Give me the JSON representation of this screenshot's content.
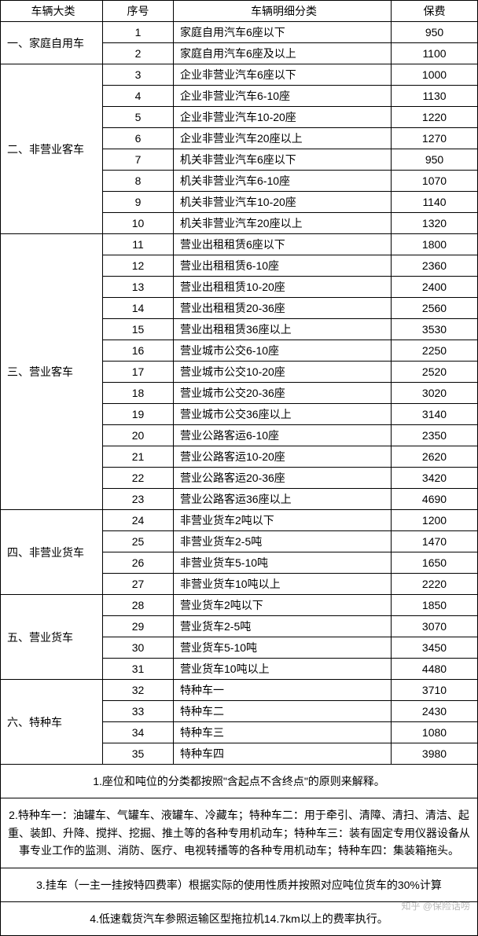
{
  "headers": {
    "category": "车辆大类",
    "seq": "序号",
    "detail": "车辆明细分类",
    "fee": "保费"
  },
  "groups": [
    {
      "name": "一、家庭自用车",
      "rows": [
        {
          "seq": "1",
          "detail": "家庭自用汽车6座以下",
          "fee": "950"
        },
        {
          "seq": "2",
          "detail": "家庭自用汽车6座及以上",
          "fee": "1100"
        }
      ]
    },
    {
      "name": "二、非营业客车",
      "rows": [
        {
          "seq": "3",
          "detail": "企业非营业汽车6座以下",
          "fee": "1000"
        },
        {
          "seq": "4",
          "detail": "企业非营业汽车6-10座",
          "fee": "1130"
        },
        {
          "seq": "5",
          "detail": "企业非营业汽车10-20座",
          "fee": "1220"
        },
        {
          "seq": "6",
          "detail": "企业非营业汽车20座以上",
          "fee": "1270"
        },
        {
          "seq": "7",
          "detail": "机关非营业汽车6座以下",
          "fee": "950"
        },
        {
          "seq": "8",
          "detail": "机关非营业汽车6-10座",
          "fee": "1070"
        },
        {
          "seq": "9",
          "detail": "机关非营业汽车10-20座",
          "fee": "1140"
        },
        {
          "seq": "10",
          "detail": "机关非营业汽车20座以上",
          "fee": "1320"
        }
      ]
    },
    {
      "name": "三、营业客车",
      "rows": [
        {
          "seq": "11",
          "detail": "营业出租租赁6座以下",
          "fee": "1800"
        },
        {
          "seq": "12",
          "detail": "营业出租租赁6-10座",
          "fee": "2360"
        },
        {
          "seq": "13",
          "detail": "营业出租租赁10-20座",
          "fee": "2400"
        },
        {
          "seq": "14",
          "detail": "营业出租租赁20-36座",
          "fee": "2560"
        },
        {
          "seq": "15",
          "detail": "营业出租租赁36座以上",
          "fee": "3530"
        },
        {
          "seq": "16",
          "detail": "营业城市公交6-10座",
          "fee": "2250"
        },
        {
          "seq": "17",
          "detail": "营业城市公交10-20座",
          "fee": "2520"
        },
        {
          "seq": "18",
          "detail": "营业城市公交20-36座",
          "fee": "3020"
        },
        {
          "seq": "19",
          "detail": "营业城市公交36座以上",
          "fee": "3140"
        },
        {
          "seq": "20",
          "detail": "营业公路客运6-10座",
          "fee": "2350"
        },
        {
          "seq": "21",
          "detail": "营业公路客运10-20座",
          "fee": "2620"
        },
        {
          "seq": "22",
          "detail": "营业公路客运20-36座",
          "fee": "3420"
        },
        {
          "seq": "23",
          "detail": "营业公路客运36座以上",
          "fee": "4690"
        }
      ]
    },
    {
      "name": "四、非营业货车",
      "rows": [
        {
          "seq": "24",
          "detail": "非营业货车2吨以下",
          "fee": "1200"
        },
        {
          "seq": "25",
          "detail": "非营业货车2-5吨",
          "fee": "1470"
        },
        {
          "seq": "26",
          "detail": "非营业货车5-10吨",
          "fee": "1650"
        },
        {
          "seq": "27",
          "detail": "非营业货车10吨以上",
          "fee": "2220"
        }
      ]
    },
    {
      "name": "五、营业货车",
      "rows": [
        {
          "seq": "28",
          "detail": "营业货车2吨以下",
          "fee": "1850"
        },
        {
          "seq": "29",
          "detail": "营业货车2-5吨",
          "fee": "3070"
        },
        {
          "seq": "30",
          "detail": "营业货车5-10吨",
          "fee": "3450"
        },
        {
          "seq": "31",
          "detail": "营业货车10吨以上",
          "fee": "4480"
        }
      ]
    },
    {
      "name": "六、特种车",
      "rows": [
        {
          "seq": "32",
          "detail": "特种车一",
          "fee": "3710"
        },
        {
          "seq": "33",
          "detail": "特种车二",
          "fee": "2430"
        },
        {
          "seq": "34",
          "detail": "特种车三",
          "fee": "1080"
        },
        {
          "seq": "35",
          "detail": "特种车四",
          "fee": "3980"
        }
      ]
    }
  ],
  "notes": [
    "1.座位和吨位的分类都按照\"含起点不含终点\"的原则来解释。",
    "2.特种车一：油罐车、气罐车、液罐车、冷藏车；特种车二：用于牵引、清障、清扫、清洁、起重、装卸、升降、搅拌、挖掘、推土等的各种专用机动车；特种车三：装有固定专用仪器设备从事专业工作的监测、消防、医疗、电视转播等的各种专用机动车；特种车四：集装箱拖头。",
    "3.挂车（一主一挂按特四费率）根据实际的使用性质并按照对应吨位货车的30%计算",
    "4.低速载货汽车参照运输区型拖拉机14.7km以上的费率执行。"
  ],
  "watermark": "知乎 @保险话唠"
}
